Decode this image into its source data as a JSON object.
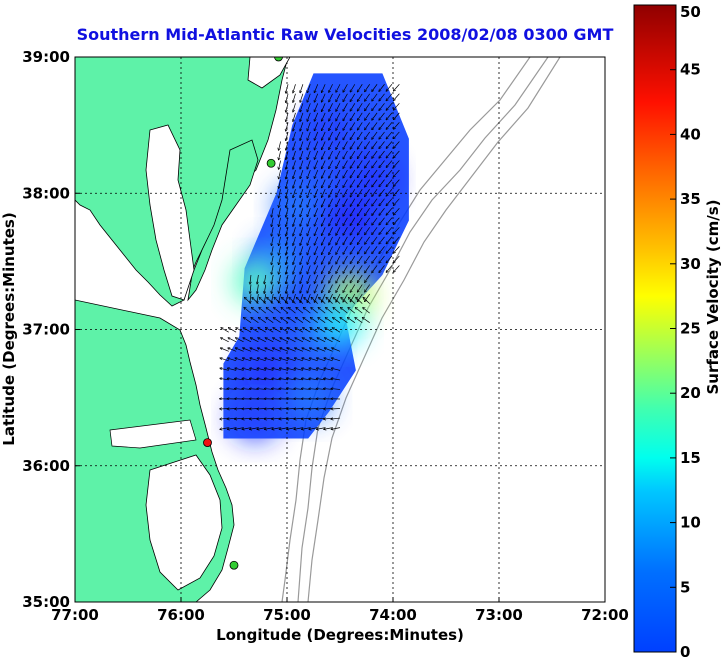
{
  "title": "Southern Mid-Atlantic Raw Velocities 2008/02/08 0300 GMT",
  "x_axis": {
    "label": "Longitude (Degrees:Minutes)",
    "ticks": [
      "77:00",
      "76:00",
      "75:00",
      "74:00",
      "73:00",
      "72:00"
    ],
    "values": [
      -77,
      -76,
      -75,
      -74,
      -73,
      -72
    ],
    "range": [
      -77,
      -72
    ]
  },
  "y_axis": {
    "label": "Latitude (Degrees:Minutes)",
    "ticks": [
      "39:00",
      "38:00",
      "37:00",
      "36:00",
      "35:00"
    ],
    "values": [
      39,
      38,
      37,
      36,
      35
    ],
    "range": [
      35,
      39
    ]
  },
  "colorbar": {
    "label": "Surface Velocity (cm/s)",
    "ticks": [
      "0",
      "5",
      "10",
      "15",
      "20",
      "25",
      "30",
      "35",
      "40",
      "45",
      "50"
    ],
    "range": [
      0,
      50
    ],
    "colormap": "jet"
  },
  "colors": {
    "land": "#5ef2a8",
    "water": "#ffffff",
    "coast": "#000000",
    "bathymetry": "#9a9a9a",
    "grid": "#000000",
    "title": "#1010e0"
  },
  "grid": "dotted",
  "stations": [
    {
      "lon": -75.08,
      "lat": 39.0,
      "color": "#33cc33"
    },
    {
      "lon": -75.15,
      "lat": 38.22,
      "color": "#33cc33"
    },
    {
      "lon": -75.75,
      "lat": 36.17,
      "color": "#ee1111"
    },
    {
      "lon": -75.5,
      "lat": 35.27,
      "color": "#33cc33"
    }
  ],
  "velocity_patches": [
    {
      "lon": -74.6,
      "lat": 38.45,
      "speed": 8
    },
    {
      "lon": -74.2,
      "lat": 38.1,
      "speed": 7
    },
    {
      "lon": -74.9,
      "lat": 37.9,
      "speed": 11
    },
    {
      "lon": -74.4,
      "lat": 37.8,
      "speed": 6
    },
    {
      "lon": -75.1,
      "lat": 37.5,
      "speed": 12
    },
    {
      "lon": -74.5,
      "lat": 37.5,
      "speed": 9
    },
    {
      "lon": -74.4,
      "lat": 37.25,
      "speed": 28
    },
    {
      "lon": -75.3,
      "lat": 37.35,
      "speed": 22
    },
    {
      "lon": -75.0,
      "lat": 37.0,
      "speed": 9
    },
    {
      "lon": -74.75,
      "lat": 36.95,
      "speed": 10
    },
    {
      "lon": -74.5,
      "lat": 37.05,
      "speed": 18
    },
    {
      "lon": -75.2,
      "lat": 36.7,
      "speed": 7
    },
    {
      "lon": -74.8,
      "lat": 36.5,
      "speed": 11
    },
    {
      "lon": -75.3,
      "lat": 36.35,
      "speed": 8
    }
  ]
}
